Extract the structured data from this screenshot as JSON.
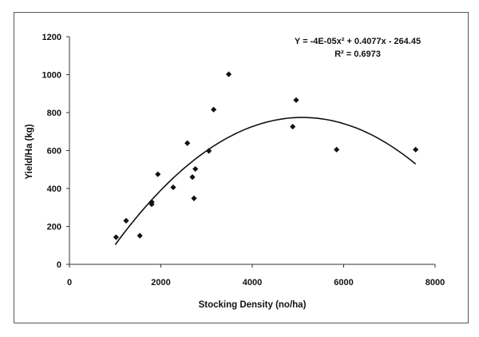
{
  "chart_data": {
    "type": "scatter",
    "title": "",
    "xlabel": "Stocking Density (no/ha)",
    "ylabel": "Yield/Ha (kg)",
    "xlim": [
      0,
      8000
    ],
    "ylim": [
      0,
      1200
    ],
    "xticks": [
      0,
      2000,
      4000,
      6000,
      8000
    ],
    "yticks": [
      0,
      200,
      400,
      600,
      800,
      1000,
      1200
    ],
    "grid": false,
    "legend": "none",
    "marker": "diamond",
    "colors": {
      "points": "#111111",
      "trendline": "#111111",
      "border": "#555555"
    },
    "points": [
      {
        "x": 1020,
        "y": 143
      },
      {
        "x": 1240,
        "y": 230
      },
      {
        "x": 1540,
        "y": 151
      },
      {
        "x": 1800,
        "y": 329
      },
      {
        "x": 1800,
        "y": 317
      },
      {
        "x": 1935,
        "y": 475
      },
      {
        "x": 2270,
        "y": 406
      },
      {
        "x": 2580,
        "y": 639
      },
      {
        "x": 2690,
        "y": 460
      },
      {
        "x": 2755,
        "y": 503
      },
      {
        "x": 2725,
        "y": 348
      },
      {
        "x": 3050,
        "y": 598
      },
      {
        "x": 3155,
        "y": 816
      },
      {
        "x": 3485,
        "y": 1002
      },
      {
        "x": 4960,
        "y": 866
      },
      {
        "x": 4885,
        "y": 726
      },
      {
        "x": 5845,
        "y": 605
      },
      {
        "x": 7575,
        "y": 605
      }
    ],
    "trendline": {
      "type": "polynomial",
      "coefficients": {
        "a": -4e-05,
        "b": 0.4077,
        "c": -264.45
      },
      "x_range": [
        1000,
        7575
      ],
      "equation_label": "Y = -4E-05x² + 0.4077x - 264.45",
      "r2_label": "R² = 0.6973"
    }
  }
}
